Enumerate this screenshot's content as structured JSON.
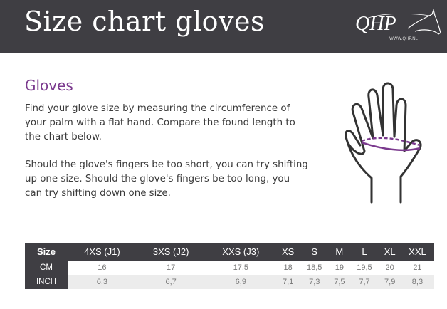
{
  "header": {
    "title": "Size chart gloves",
    "logo_text": "QHP",
    "logo_url": "WWW.QHP.NL"
  },
  "section": {
    "heading": "Gloves",
    "paragraph1": "Find your glove size by measuring the circumference of your palm with a flat hand. Compare the found length to the chart below.",
    "paragraph2": "Should the glove's fingers be too short, you can try shifting up one size. Should the glove's fingers be too long, you can try shifting down one size."
  },
  "colors": {
    "header_bg": "#3f3e43",
    "accent": "#7b3a8e"
  },
  "table": {
    "header": [
      "Size",
      "4XS (J1)",
      "3XS (J2)",
      "XXS (J3)",
      "XS",
      "S",
      "M",
      "L",
      "XL",
      "XXL"
    ],
    "rows": [
      [
        "CM",
        "16",
        "17",
        "17,5",
        "18",
        "18,5",
        "19",
        "19,5",
        "20",
        "21"
      ],
      [
        "INCH",
        "6,3",
        "6,7",
        "6,9",
        "7,1",
        "7,3",
        "7,5",
        "7,7",
        "7,9",
        "8,3"
      ]
    ]
  }
}
